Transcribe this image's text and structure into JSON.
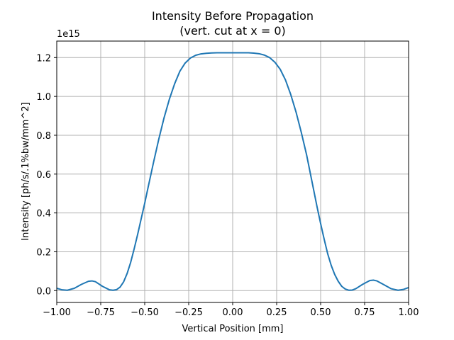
{
  "chart_data": {
    "type": "line",
    "title": "Intensity Before Propagation",
    "subtitle": "(vert. cut at x = 0)",
    "xlabel": "Vertical Position [mm]",
    "ylabel": "Intensity [ph/s/.1%bw/mm^2]",
    "y_offset_label": "1e15",
    "xlim": [
      -1.0,
      1.0
    ],
    "ylim": [
      -0.061,
      1.285
    ],
    "y_scale_factor": 1000000000000000.0,
    "grid": true,
    "x_ticks": [
      -1.0,
      -0.75,
      -0.5,
      -0.25,
      0.0,
      0.25,
      0.5,
      0.75,
      1.0
    ],
    "x_tick_labels": [
      "−1.00",
      "−0.75",
      "−0.50",
      "−0.25",
      "0.00",
      "0.25",
      "0.50",
      "0.75",
      "1.00"
    ],
    "y_ticks": [
      0.0,
      0.2,
      0.4,
      0.6,
      0.8,
      1.0,
      1.2
    ],
    "y_tick_labels": [
      "0.0",
      "0.2",
      "0.4",
      "0.6",
      "0.8",
      "1.0",
      "1.2"
    ],
    "series": [
      {
        "color": "#1f77b4",
        "x": [
          -1.0,
          -0.97,
          -0.94,
          -0.9,
          -0.86,
          -0.82,
          -0.8,
          -0.78,
          -0.74,
          -0.7,
          -0.68,
          -0.66,
          -0.64,
          -0.62,
          -0.6,
          -0.58,
          -0.56,
          -0.54,
          -0.52,
          -0.5,
          -0.48,
          -0.45,
          -0.42,
          -0.39,
          -0.36,
          -0.33,
          -0.3,
          -0.27,
          -0.24,
          -0.21,
          -0.18,
          -0.15,
          -0.12,
          -0.09,
          -0.06,
          -0.03,
          0.0,
          0.03,
          0.06,
          0.09,
          0.12,
          0.15,
          0.18,
          0.21,
          0.24,
          0.27,
          0.3,
          0.33,
          0.36,
          0.39,
          0.42,
          0.45,
          0.48,
          0.5,
          0.52,
          0.54,
          0.56,
          0.58,
          0.6,
          0.62,
          0.64,
          0.66,
          0.68,
          0.7,
          0.74,
          0.78,
          0.8,
          0.82,
          0.86,
          0.9,
          0.94,
          0.97,
          1.0
        ],
        "y": [
          0.012,
          0.004,
          0.002,
          0.012,
          0.032,
          0.048,
          0.05,
          0.046,
          0.022,
          0.004,
          0.002,
          0.005,
          0.018,
          0.045,
          0.088,
          0.145,
          0.215,
          0.29,
          0.37,
          0.45,
          0.535,
          0.66,
          0.78,
          0.89,
          0.985,
          1.065,
          1.13,
          1.172,
          1.198,
          1.212,
          1.219,
          1.222,
          1.224,
          1.225,
          1.225,
          1.225,
          1.225,
          1.225,
          1.225,
          1.225,
          1.223,
          1.22,
          1.213,
          1.2,
          1.176,
          1.14,
          1.085,
          1.01,
          0.92,
          0.815,
          0.7,
          0.565,
          0.43,
          0.345,
          0.265,
          0.19,
          0.13,
          0.083,
          0.048,
          0.022,
          0.008,
          0.002,
          0.003,
          0.01,
          0.033,
          0.052,
          0.054,
          0.05,
          0.03,
          0.01,
          0.002,
          0.006,
          0.016
        ]
      }
    ]
  }
}
